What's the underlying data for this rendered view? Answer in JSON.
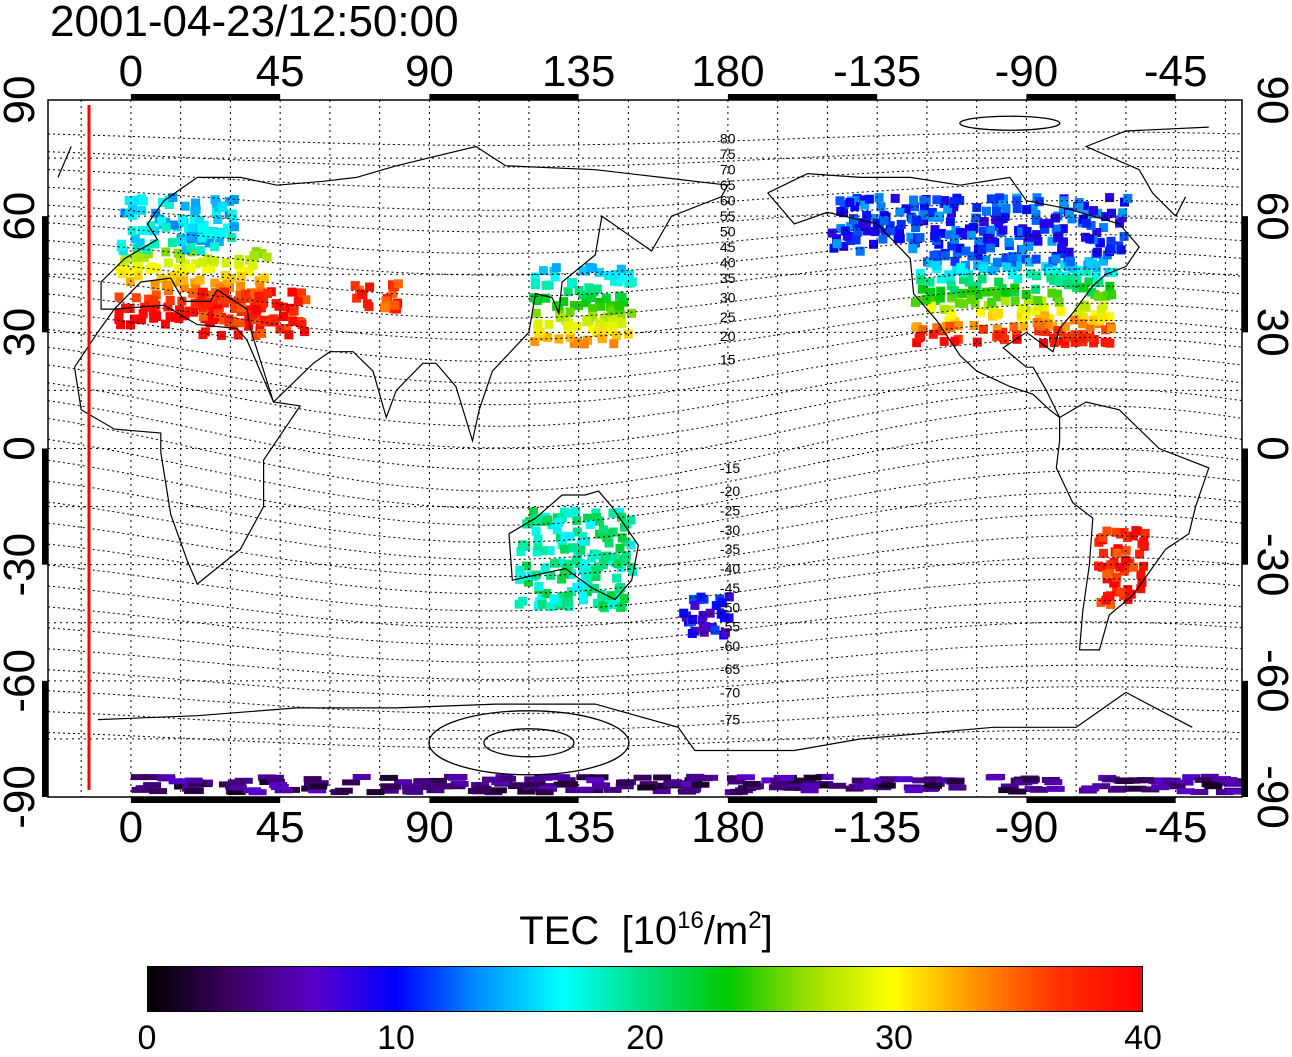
{
  "timestamp": "2001-04-23/12:50:00",
  "chart_data": {
    "type": "heatmap",
    "title": "2001-04-23/12:50:00",
    "projection": "equirectangular",
    "lon_ticks_top": [
      "0",
      "45",
      "90",
      "135",
      "180",
      "-135",
      "-90",
      "-45"
    ],
    "lon_ticks_bottom": [
      "0",
      "45",
      "90",
      "135",
      "180",
      "-135",
      "-90",
      "-45"
    ],
    "lat_ticks_left": [
      "90",
      "60",
      "30",
      "0",
      "-30",
      "-60",
      "-90"
    ],
    "lat_ticks_right": [
      "90",
      "60",
      "30",
      "0",
      "-30",
      "-60",
      "-90"
    ],
    "lon_range": [
      -25,
      335
    ],
    "lat_range": [
      -90,
      90
    ],
    "grid": "dotted",
    "sun_terminator_lon": -13,
    "contour_labels": [
      "80",
      "75",
      "70",
      "65",
      "60",
      "55",
      "50",
      "45",
      "40",
      "35",
      "30",
      "25",
      "20",
      "15",
      "-15",
      "-20",
      "-25",
      "-30",
      "-35",
      "-40",
      "-45",
      "-50",
      "-55",
      "-60",
      "-65",
      "-70",
      "-75"
    ],
    "colorbar": {
      "label": "TEC",
      "unit_base": "[10",
      "unit_exp": "16",
      "unit_mid": "/m",
      "unit_exp2": "2",
      "unit_end": "]",
      "min": 0,
      "max": 40,
      "ticks": [
        "0",
        "10",
        "20",
        "30",
        "40"
      ],
      "colors": [
        "#000000",
        "#3a0060",
        "#5a00c8",
        "#0000ff",
        "#0090ff",
        "#00ffff",
        "#00e080",
        "#00c800",
        "#a0e000",
        "#ffff00",
        "#ff9000",
        "#ff3000",
        "#ff0000"
      ]
    },
    "tec_regions": [
      {
        "name": "europe",
        "lon": [
          -5,
          40
        ],
        "lat": [
          33,
          52
        ],
        "tec": 38
      },
      {
        "name": "europe-north",
        "lon": [
          -5,
          30
        ],
        "lat": [
          52,
          66
        ],
        "tec": 16
      },
      {
        "name": "north-africa-east",
        "lon": [
          20,
          52
        ],
        "lat": [
          30,
          42
        ],
        "tec": 38
      },
      {
        "name": "central-asia",
        "lon": [
          65,
          80
        ],
        "lat": [
          36,
          44
        ],
        "tec": 37
      },
      {
        "name": "japan",
        "lon": [
          120,
          150
        ],
        "lat": [
          28,
          48
        ],
        "tec": 19
      },
      {
        "name": "north-america",
        "lon": [
          -125,
          -65
        ],
        "lat": [
          28,
          52
        ],
        "tec": 22
      },
      {
        "name": "canada",
        "lon": [
          -150,
          -60
        ],
        "lat": [
          52,
          66
        ],
        "tec": 11
      },
      {
        "name": "south-america",
        "lon": [
          -70,
          -55
        ],
        "lat": [
          -40,
          -20
        ],
        "tec": 38
      },
      {
        "name": "australia",
        "lon": [
          115,
          150
        ],
        "lat": [
          -40,
          -15
        ],
        "tec": 19
      },
      {
        "name": "new-zealand",
        "lon": [
          165,
          180
        ],
        "lat": [
          -47,
          -36
        ],
        "tec": 9
      },
      {
        "name": "antarctica",
        "lon": [
          0,
          330
        ],
        "lat": [
          -88,
          -84
        ],
        "tec": 4
      }
    ]
  }
}
